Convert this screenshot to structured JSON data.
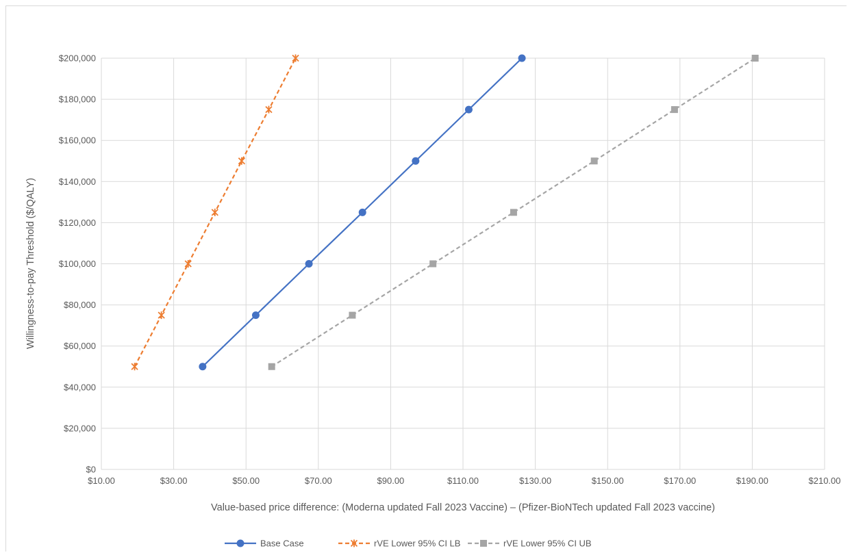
{
  "chart_data": {
    "type": "line",
    "title": "",
    "xlabel": "Value-based price difference: (Moderna updated Fall 2023 Vaccine) – (Pfizer-BioNTech updated Fall 2023 vaccine)",
    "ylabel": "Willingness-to-pay Threshold ($/QALY)",
    "xlim": [
      10,
      210
    ],
    "ylim": [
      0,
      200000
    ],
    "x_ticks": [
      10,
      30,
      50,
      70,
      90,
      110,
      130,
      150,
      170,
      190,
      210
    ],
    "x_tick_labels": [
      "$10.00",
      "$30.00",
      "$50.00",
      "$70.00",
      "$90.00",
      "$110.00",
      "$130.00",
      "$150.00",
      "$170.00",
      "$190.00",
      "$210.00"
    ],
    "y_ticks": [
      0,
      20000,
      40000,
      60000,
      80000,
      100000,
      120000,
      140000,
      160000,
      180000,
      200000
    ],
    "y_tick_labels": [
      "$0",
      "$20,000",
      "$40,000",
      "$60,000",
      "$80,000",
      "$100,000",
      "$120,000",
      "$140,000",
      "$160,000",
      "$180,000",
      "$200,000"
    ],
    "grid": true,
    "legend_position": "bottom",
    "series": [
      {
        "name": "Base Case",
        "color": "#4472c4",
        "line_style": "solid",
        "marker": "circle",
        "points": [
          {
            "x": 38.0,
            "y": 50000
          },
          {
            "x": 52.7,
            "y": 75000
          },
          {
            "x": 67.4,
            "y": 100000
          },
          {
            "x": 82.2,
            "y": 125000
          },
          {
            "x": 96.9,
            "y": 150000
          },
          {
            "x": 111.6,
            "y": 175000
          },
          {
            "x": 126.3,
            "y": 200000
          }
        ]
      },
      {
        "name": "rVE Lower 95% CI LB",
        "color": "#ed7d31",
        "line_style": "dashed",
        "marker": "star",
        "points": [
          {
            "x": 19.2,
            "y": 50000
          },
          {
            "x": 26.6,
            "y": 75000
          },
          {
            "x": 34.0,
            "y": 100000
          },
          {
            "x": 41.4,
            "y": 125000
          },
          {
            "x": 48.8,
            "y": 150000
          },
          {
            "x": 56.3,
            "y": 175000
          },
          {
            "x": 63.7,
            "y": 200000
          }
        ]
      },
      {
        "name": "rVE Lower 95% CI UB",
        "color": "#a5a5a5",
        "line_style": "dashed",
        "marker": "square",
        "points": [
          {
            "x": 57.1,
            "y": 50000
          },
          {
            "x": 79.4,
            "y": 75000
          },
          {
            "x": 101.7,
            "y": 100000
          },
          {
            "x": 124.0,
            "y": 125000
          },
          {
            "x": 146.3,
            "y": 150000
          },
          {
            "x": 168.5,
            "y": 175000
          },
          {
            "x": 190.8,
            "y": 200000
          }
        ]
      }
    ]
  }
}
